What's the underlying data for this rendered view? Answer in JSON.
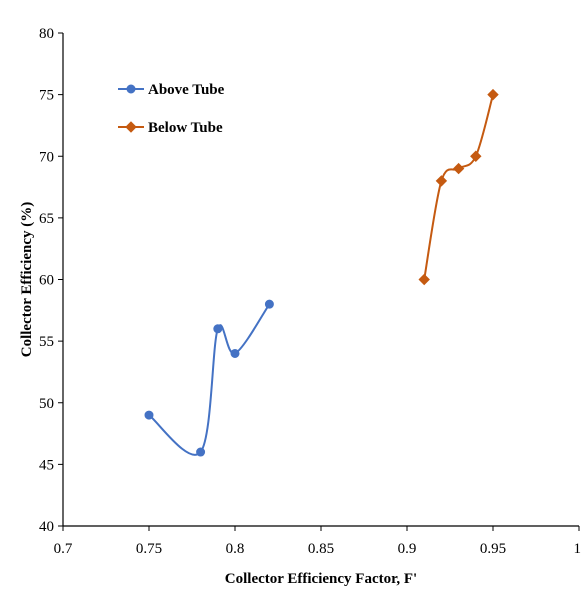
{
  "chart_data": {
    "type": "line",
    "title": "",
    "xlabel": "Collector Efficiency Factor, F'",
    "ylabel": "Collector Efficiency (%)",
    "xlim": [
      0.7,
      1.0
    ],
    "ylim": [
      40,
      80
    ],
    "x_ticks": [
      0.7,
      0.75,
      0.8,
      0.85,
      0.9,
      0.95,
      1
    ],
    "x_tick_labels": [
      "0.7",
      "0.75",
      "0.8",
      "0.85",
      "0.9",
      "0.95",
      "1"
    ],
    "y_ticks": [
      40,
      45,
      50,
      55,
      60,
      65,
      70,
      75,
      80
    ],
    "y_tick_labels": [
      "40",
      "45",
      "50",
      "55",
      "60",
      "65",
      "70",
      "75",
      "80"
    ],
    "grid": false,
    "legend_position": "top-left",
    "series": [
      {
        "name": "Above Tube",
        "color": "#4472C4",
        "marker": "circle",
        "smooth": true,
        "x": [
          0.75,
          0.78,
          0.79,
          0.8,
          0.82
        ],
        "y": [
          49,
          46,
          56,
          54,
          58
        ]
      },
      {
        "name": "Below Tube",
        "color": "#C55A11",
        "marker": "diamond",
        "smooth": true,
        "x": [
          0.91,
          0.92,
          0.93,
          0.94,
          0.95
        ],
        "y": [
          60,
          68,
          69,
          70,
          75
        ]
      }
    ]
  }
}
